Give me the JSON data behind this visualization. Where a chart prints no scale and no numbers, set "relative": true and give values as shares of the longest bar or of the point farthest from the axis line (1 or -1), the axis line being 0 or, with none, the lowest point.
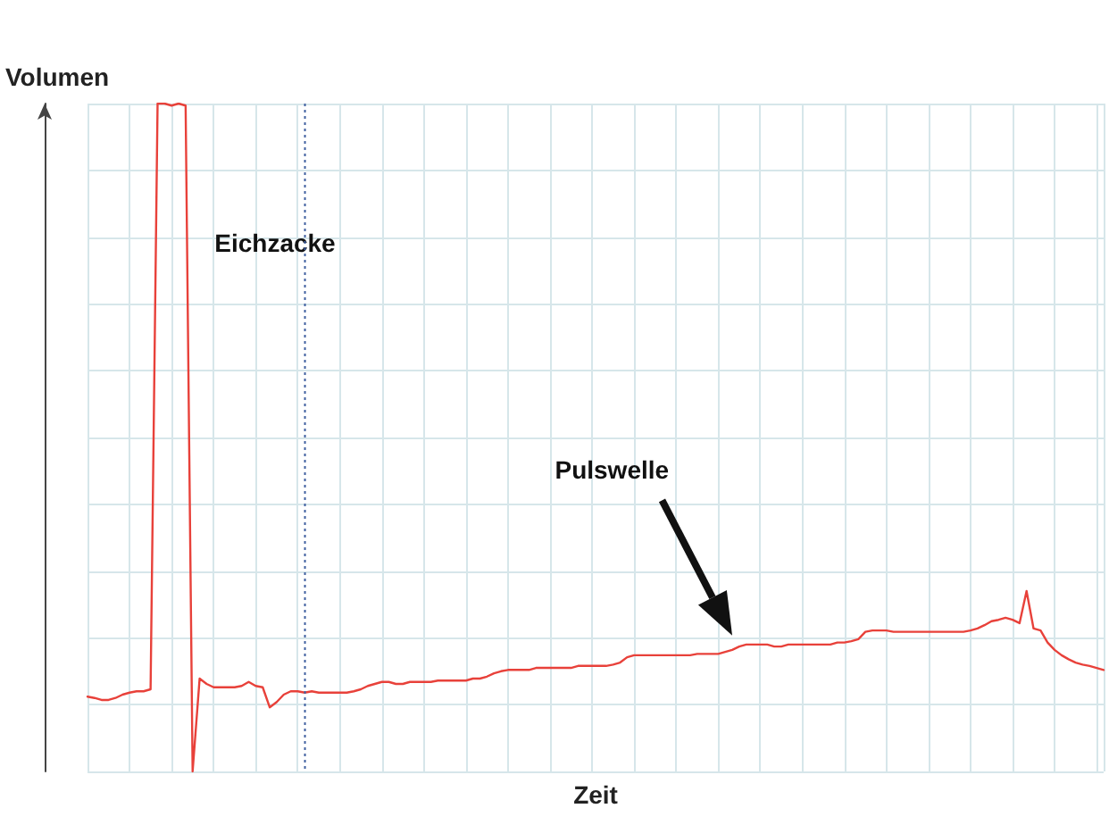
{
  "chart_data": {
    "type": "line",
    "relative": true,
    "xlabel": "Zeit",
    "ylabel": "Volumen",
    "tick_labels": false,
    "grid": true,
    "line_style": "solid",
    "annotations": [
      "Eichzacke",
      "Pulswelle"
    ],
    "categories": [
      null,
      null,
      null,
      null,
      null,
      null,
      null,
      null,
      null,
      null,
      null,
      null,
      null,
      null,
      null,
      null,
      null,
      null,
      null,
      null,
      null,
      null,
      null,
      null,
      null,
      null,
      null,
      null,
      null,
      null,
      null,
      null,
      null,
      null,
      null,
      null,
      null,
      null,
      null,
      null,
      null,
      null,
      null,
      null,
      null,
      null,
      null,
      null,
      null,
      null,
      null,
      null,
      null,
      null,
      null,
      null,
      null,
      null,
      null,
      null,
      null,
      null,
      null,
      null,
      null,
      null,
      null,
      null,
      null,
      null,
      null,
      null,
      null,
      null,
      null,
      null,
      null,
      null,
      null,
      null,
      null,
      null,
      null,
      null,
      null,
      null,
      null,
      null,
      null,
      null,
      null,
      null,
      null,
      null,
      null,
      null,
      null,
      null,
      null,
      null,
      null,
      null,
      null,
      null,
      null,
      null,
      null,
      null,
      null,
      null,
      null,
      null,
      null,
      null,
      null,
      null,
      null,
      null,
      null,
      null,
      null,
      null,
      null,
      null,
      null,
      null,
      null,
      null,
      null,
      null,
      null,
      null,
      null,
      null,
      null,
      null,
      null,
      null,
      null,
      null,
      null,
      null,
      null,
      null,
      null,
      null
    ],
    "series": [
      {
        "color": "#e8413a",
        "values": [
          0.112,
          0.11,
          0.107,
          0.107,
          0.11,
          0.115,
          0.118,
          0.12,
          0.12,
          0.123,
          1,
          1,
          0.997,
          1,
          0.997,
          0,
          0.139,
          0.131,
          0.126,
          0.126,
          0.126,
          0.126,
          0.128,
          0.134,
          0.128,
          0.126,
          0.096,
          0.104,
          0.115,
          0.12,
          0.12,
          0.118,
          0.12,
          0.118,
          0.118,
          0.118,
          0.118,
          0.118,
          0.12,
          0.123,
          0.128,
          0.131,
          0.134,
          0.134,
          0.131,
          0.131,
          0.134,
          0.134,
          0.134,
          0.134,
          0.136,
          0.136,
          0.136,
          0.136,
          0.136,
          0.139,
          0.139,
          0.142,
          0.147,
          0.15,
          0.152,
          0.152,
          0.152,
          0.152,
          0.155,
          0.155,
          0.155,
          0.155,
          0.155,
          0.155,
          0.158,
          0.158,
          0.158,
          0.158,
          0.158,
          0.16,
          0.163,
          0.171,
          0.174,
          0.174,
          0.174,
          0.174,
          0.174,
          0.174,
          0.174,
          0.174,
          0.174,
          0.176,
          0.176,
          0.176,
          0.176,
          0.179,
          0.182,
          0.187,
          0.19,
          0.19,
          0.19,
          0.19,
          0.187,
          0.187,
          0.19,
          0.19,
          0.19,
          0.19,
          0.19,
          0.19,
          0.19,
          0.193,
          0.193,
          0.195,
          0.198,
          0.209,
          0.211,
          0.211,
          0.211,
          0.209,
          0.209,
          0.209,
          0.209,
          0.209,
          0.209,
          0.209,
          0.209,
          0.209,
          0.209,
          0.209,
          0.211,
          0.214,
          0.219,
          0.225,
          0.227,
          0.23,
          0.227,
          0.222,
          0.27,
          0.214,
          0.211,
          0.193,
          0.182,
          0.174,
          0.168,
          0.163,
          0.16,
          0.158,
          0.155,
          0.152
        ]
      }
    ]
  }
}
